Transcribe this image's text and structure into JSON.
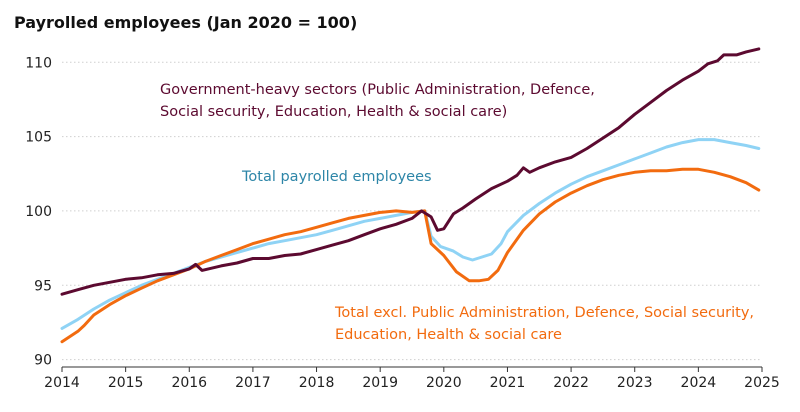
{
  "chart_data": {
    "type": "line",
    "title": "Payrolled employees (Jan 2020 = 100)",
    "xlabel": "",
    "ylabel": "",
    "xlim": [
      2014,
      2025
    ],
    "ylim": [
      89.5,
      111.5
    ],
    "x_ticks": [
      "2014",
      "2015",
      "2016",
      "2017",
      "2018",
      "2019",
      "2020",
      "2021",
      "2022",
      "2023",
      "2024",
      "2025"
    ],
    "y_ticks": [
      "90",
      "95",
      "100",
      "105",
      "110"
    ],
    "grid": "horizontal",
    "legend": "none (series labelled directly on chart)",
    "series": [
      {
        "name": "Government-heavy sectors (Public Administration, Defence, Social security, Education, Health & social care)",
        "label_lines": [
          "Government-heavy sectors (Public Administration, Defence,",
          "Social security, Education, Health & social care)"
        ],
        "color": "#5c0a30",
        "points": [
          [
            2014.0,
            94.4
          ],
          [
            2014.25,
            94.7
          ],
          [
            2014.5,
            95.0
          ],
          [
            2014.75,
            95.2
          ],
          [
            2015.0,
            95.4
          ],
          [
            2015.25,
            95.5
          ],
          [
            2015.5,
            95.7
          ],
          [
            2015.75,
            95.8
          ],
          [
            2016.0,
            96.1
          ],
          [
            2016.1,
            96.4
          ],
          [
            2016.2,
            96.0
          ],
          [
            2016.5,
            96.3
          ],
          [
            2016.75,
            96.5
          ],
          [
            2017.0,
            96.8
          ],
          [
            2017.25,
            96.8
          ],
          [
            2017.5,
            97.0
          ],
          [
            2017.75,
            97.1
          ],
          [
            2018.0,
            97.4
          ],
          [
            2018.25,
            97.7
          ],
          [
            2018.5,
            98.0
          ],
          [
            2018.75,
            98.4
          ],
          [
            2019.0,
            98.8
          ],
          [
            2019.25,
            99.1
          ],
          [
            2019.5,
            99.5
          ],
          [
            2019.65,
            100.0
          ],
          [
            2019.8,
            99.6
          ],
          [
            2019.9,
            98.7
          ],
          [
            2020.0,
            98.8
          ],
          [
            2020.15,
            99.8
          ],
          [
            2020.3,
            100.2
          ],
          [
            2020.5,
            100.8
          ],
          [
            2020.75,
            101.5
          ],
          [
            2021.0,
            102.0
          ],
          [
            2021.15,
            102.4
          ],
          [
            2021.25,
            102.9
          ],
          [
            2021.35,
            102.6
          ],
          [
            2021.5,
            102.9
          ],
          [
            2021.75,
            103.3
          ],
          [
            2022.0,
            103.6
          ],
          [
            2022.25,
            104.2
          ],
          [
            2022.5,
            104.9
          ],
          [
            2022.75,
            105.6
          ],
          [
            2023.0,
            106.5
          ],
          [
            2023.25,
            107.3
          ],
          [
            2023.5,
            108.1
          ],
          [
            2023.75,
            108.8
          ],
          [
            2024.0,
            109.4
          ],
          [
            2024.15,
            109.9
          ],
          [
            2024.3,
            110.1
          ],
          [
            2024.4,
            110.5
          ],
          [
            2024.6,
            110.5
          ],
          [
            2024.75,
            110.7
          ],
          [
            2024.95,
            110.9
          ]
        ]
      },
      {
        "name": "Total payrolled employees",
        "label_lines": [
          "Total payrolled employees"
        ],
        "color": "#8fd3f5",
        "points": [
          [
            2014.0,
            92.1
          ],
          [
            2014.25,
            92.7
          ],
          [
            2014.5,
            93.4
          ],
          [
            2014.75,
            94.0
          ],
          [
            2015.0,
            94.5
          ],
          [
            2015.25,
            95.0
          ],
          [
            2015.5,
            95.4
          ],
          [
            2015.75,
            95.8
          ],
          [
            2016.0,
            96.2
          ],
          [
            2016.25,
            96.6
          ],
          [
            2016.5,
            96.9
          ],
          [
            2016.75,
            97.2
          ],
          [
            2017.0,
            97.5
          ],
          [
            2017.25,
            97.8
          ],
          [
            2017.5,
            98.0
          ],
          [
            2017.75,
            98.2
          ],
          [
            2018.0,
            98.4
          ],
          [
            2018.25,
            98.7
          ],
          [
            2018.5,
            99.0
          ],
          [
            2018.75,
            99.3
          ],
          [
            2019.0,
            99.5
          ],
          [
            2019.25,
            99.7
          ],
          [
            2019.5,
            99.9
          ],
          [
            2019.7,
            100.0
          ],
          [
            2019.8,
            98.3
          ],
          [
            2019.95,
            97.6
          ],
          [
            2020.15,
            97.3
          ],
          [
            2020.3,
            96.9
          ],
          [
            2020.45,
            96.7
          ],
          [
            2020.6,
            96.9
          ],
          [
            2020.75,
            97.1
          ],
          [
            2020.9,
            97.8
          ],
          [
            2021.0,
            98.6
          ],
          [
            2021.25,
            99.7
          ],
          [
            2021.5,
            100.5
          ],
          [
            2021.75,
            101.2
          ],
          [
            2022.0,
            101.8
          ],
          [
            2022.25,
            102.3
          ],
          [
            2022.5,
            102.7
          ],
          [
            2022.75,
            103.1
          ],
          [
            2023.0,
            103.5
          ],
          [
            2023.25,
            103.9
          ],
          [
            2023.5,
            104.3
          ],
          [
            2023.75,
            104.6
          ],
          [
            2024.0,
            104.8
          ],
          [
            2024.25,
            104.8
          ],
          [
            2024.5,
            104.6
          ],
          [
            2024.75,
            104.4
          ],
          [
            2024.95,
            104.2
          ]
        ]
      },
      {
        "name": "Total excl. Public Administration, Defence, Social security, Education, Health & social care",
        "label_lines": [
          "Total excl. Public Administration, Defence, Social security,",
          "Education, Health & social care"
        ],
        "color": "#f26b0f",
        "points": [
          [
            2014.0,
            91.2
          ],
          [
            2014.25,
            91.9
          ],
          [
            2014.35,
            92.3
          ],
          [
            2014.5,
            93.0
          ],
          [
            2014.75,
            93.7
          ],
          [
            2015.0,
            94.3
          ],
          [
            2015.25,
            94.8
          ],
          [
            2015.5,
            95.3
          ],
          [
            2015.75,
            95.7
          ],
          [
            2016.0,
            96.1
          ],
          [
            2016.25,
            96.6
          ],
          [
            2016.5,
            97.0
          ],
          [
            2016.75,
            97.4
          ],
          [
            2017.0,
            97.8
          ],
          [
            2017.25,
            98.1
          ],
          [
            2017.5,
            98.4
          ],
          [
            2017.75,
            98.6
          ],
          [
            2018.0,
            98.9
          ],
          [
            2018.25,
            99.2
          ],
          [
            2018.5,
            99.5
          ],
          [
            2018.75,
            99.7
          ],
          [
            2019.0,
            99.9
          ],
          [
            2019.25,
            100.0
          ],
          [
            2019.5,
            99.9
          ],
          [
            2019.7,
            100.0
          ],
          [
            2019.8,
            97.8
          ],
          [
            2020.0,
            97.0
          ],
          [
            2020.2,
            95.9
          ],
          [
            2020.4,
            95.3
          ],
          [
            2020.55,
            95.3
          ],
          [
            2020.7,
            95.4
          ],
          [
            2020.85,
            96.0
          ],
          [
            2021.0,
            97.2
          ],
          [
            2021.25,
            98.7
          ],
          [
            2021.5,
            99.8
          ],
          [
            2021.75,
            100.6
          ],
          [
            2022.0,
            101.2
          ],
          [
            2022.25,
            101.7
          ],
          [
            2022.5,
            102.1
          ],
          [
            2022.75,
            102.4
          ],
          [
            2023.0,
            102.6
          ],
          [
            2023.25,
            102.7
          ],
          [
            2023.5,
            102.7
          ],
          [
            2023.75,
            102.8
          ],
          [
            2024.0,
            102.8
          ],
          [
            2024.25,
            102.6
          ],
          [
            2024.5,
            102.3
          ],
          [
            2024.75,
            101.9
          ],
          [
            2024.95,
            101.4
          ]
        ]
      }
    ]
  }
}
